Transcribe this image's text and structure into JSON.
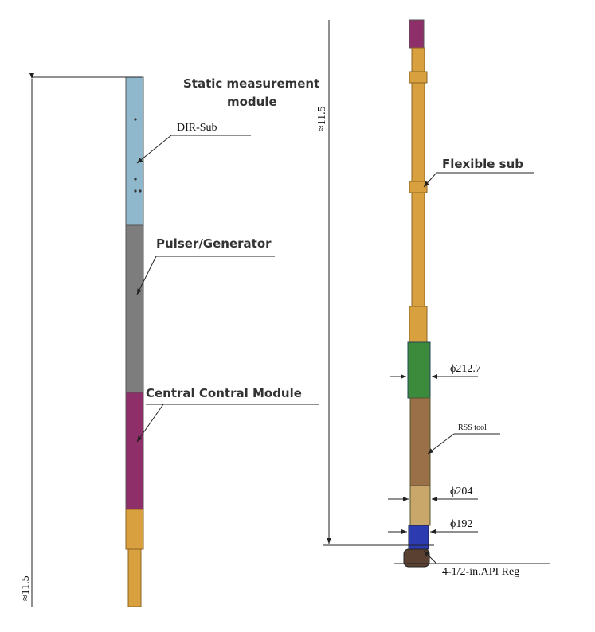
{
  "left_tool": {
    "dimension": "≈11.5",
    "labels": {
      "static_line1": "Static measurement",
      "static_line2": "module",
      "dir_sub": "DIR-Sub",
      "pulser": "Pulser/Generator",
      "central": "Central Contral Module"
    }
  },
  "right_tool": {
    "dimension": "≈11.5",
    "labels": {
      "flexible_sub": "Flexible  sub",
      "d1": "ϕ212.7",
      "rss": "RSS tool",
      "d2": "ϕ204",
      "d3": "ϕ192",
      "api": "4-1/2-in.API Reg"
    }
  }
}
